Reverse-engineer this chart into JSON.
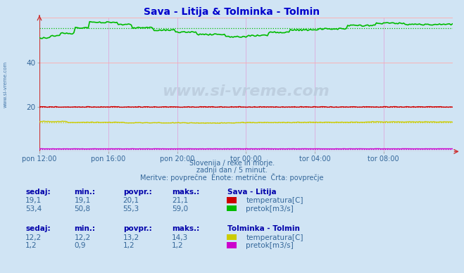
{
  "title": "Sava - Litija & Tolminka - Tolmin",
  "title_color": "#0000cc",
  "bg_color": "#d0e4f4",
  "plot_bg_color": "#d0e4f4",
  "grid_color_h": "#ffaaaa",
  "grid_color_v": "#ddaadd",
  "xlim": [
    0,
    288
  ],
  "ylim": [
    0,
    60
  ],
  "yticks": [
    20,
    40
  ],
  "xtick_labels": [
    "pon 12:00",
    "pon 16:00",
    "pon 20:00",
    "tor 00:00",
    "tor 04:00",
    "tor 08:00"
  ],
  "xtick_positions": [
    0,
    48,
    96,
    144,
    192,
    240
  ],
  "tick_color": "#336699",
  "line_sava_temp_color": "#cc0000",
  "line_sava_flow_color": "#00bb00",
  "line_tolmin_temp_color": "#cccc00",
  "line_tolmin_flow_color": "#cc00cc",
  "avg_sava_temp": 20.1,
  "avg_sava_flow": 55.3,
  "avg_tolmin_temp": 13.2,
  "avg_tolmin_flow": 1.2,
  "subtitle1": "Slovenija / reke in morje.",
  "subtitle2": "zadnji dan / 5 minut.",
  "subtitle3": "Meritve: povprečne  Enote: metrične  Črta: povprečje",
  "text_color": "#336699",
  "table_bold_color": "#0000aa",
  "table_val_color": "#336699",
  "sava_litija_label": "Sava - Litija",
  "tolmin_label": "Tolminka - Tolmin",
  "headers": [
    "sedaj:",
    "min.:",
    "povpr.:",
    "maks.:"
  ],
  "row_sava_temp": [
    "19,1",
    "19,1",
    "20,1",
    "21,1"
  ],
  "row_sava_flow": [
    "53,4",
    "50,8",
    "55,3",
    "59,0"
  ],
  "row_tolmin_temp": [
    "12,2",
    "12,2",
    "13,2",
    "14,3"
  ],
  "row_tolmin_flow": [
    "1,2",
    "0,9",
    "1,2",
    "1,2"
  ],
  "watermark": "www.si-vreme.com",
  "watermark_color": "#bbccdd",
  "left_label": "www.si-vreme.com"
}
